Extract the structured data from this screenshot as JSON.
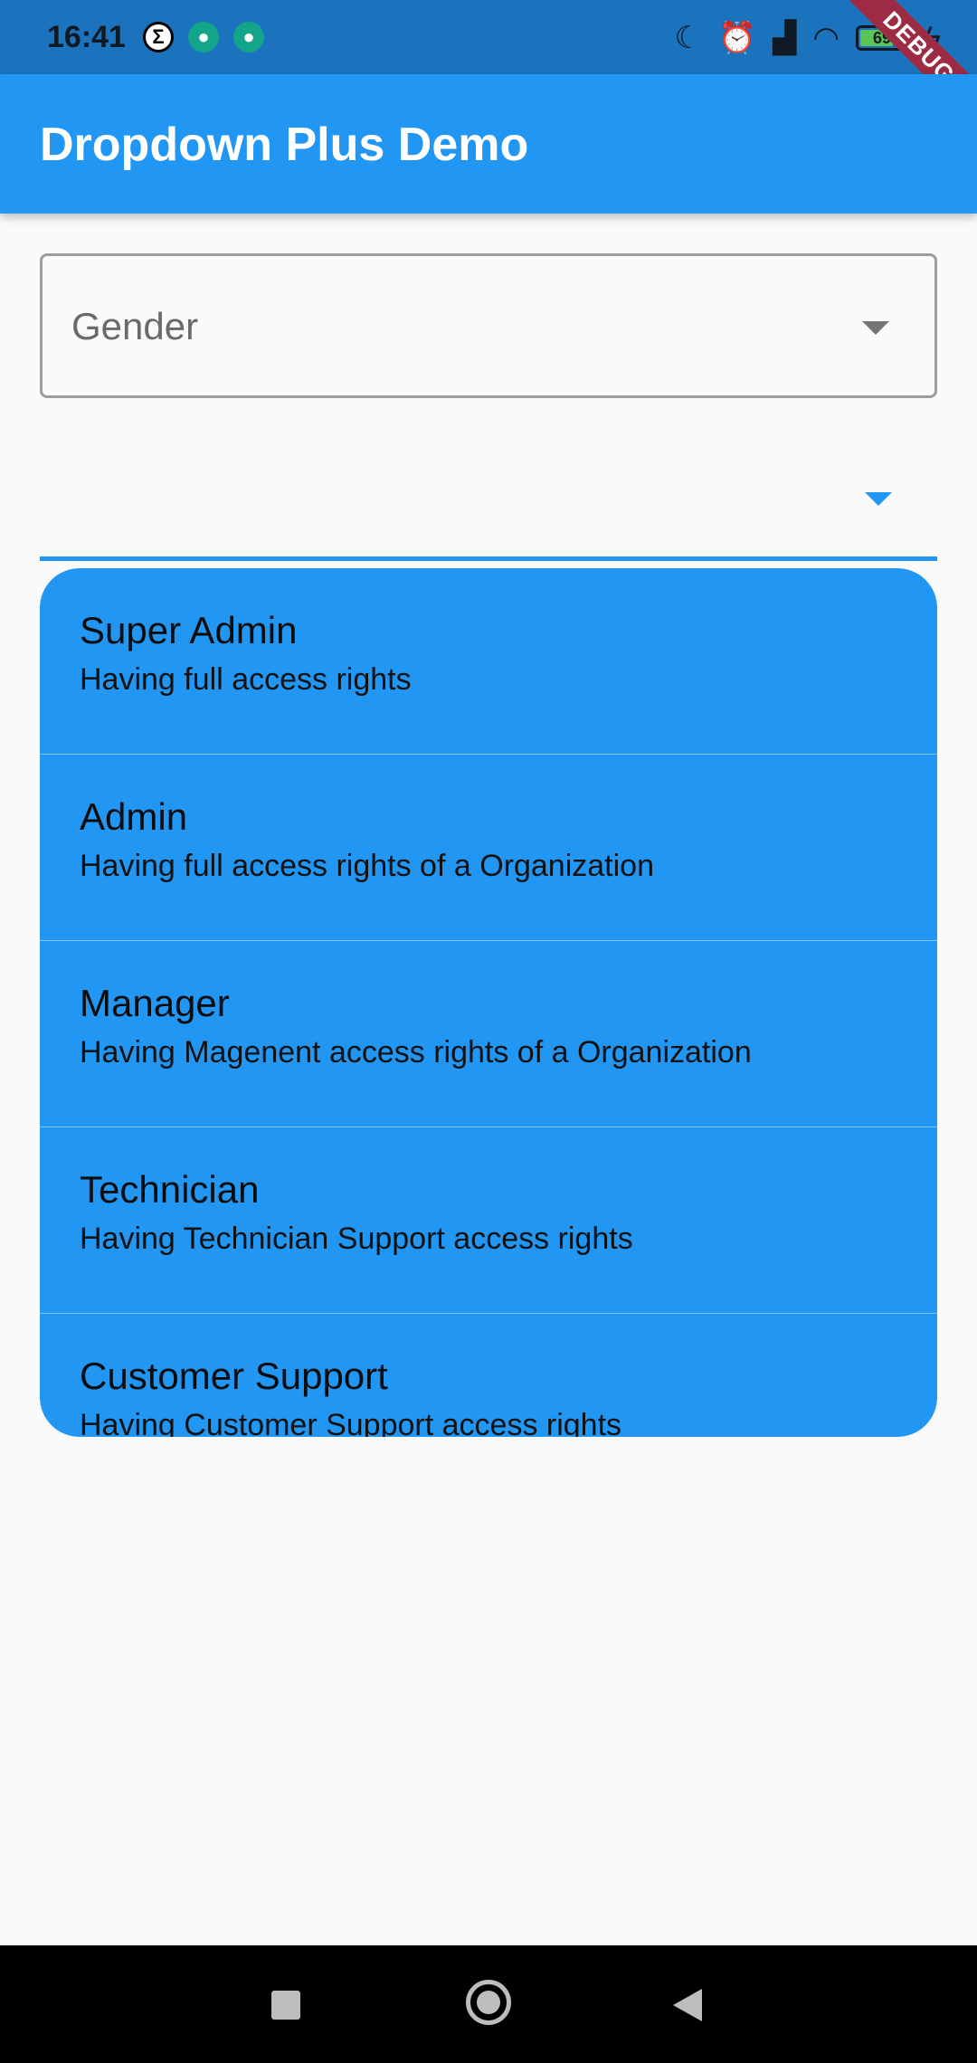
{
  "status_bar": {
    "time": "16:41",
    "left_icons": [
      "sigma-icon",
      "android-icon",
      "android-icon"
    ],
    "right_icons": [
      "moon-icon",
      "alarm-icon",
      "signal-icon",
      "wifi-icon",
      "battery-icon",
      "charging-icon"
    ],
    "battery_percent": "69"
  },
  "debug_banner": "DEBUG",
  "app_bar": {
    "title": "Dropdown Plus Demo"
  },
  "gender_dropdown": {
    "label": "Gender"
  },
  "role_dropdown": {
    "value": ""
  },
  "menu": {
    "items": [
      {
        "title": "Super Admin",
        "subtitle": "Having full access rights"
      },
      {
        "title": "Admin",
        "subtitle": "Having full access rights of a Organization"
      },
      {
        "title": "Manager",
        "subtitle": "Having Magenent access rights of a Organization"
      },
      {
        "title": "Technician",
        "subtitle": "Having Technician Support access rights"
      },
      {
        "title": "Customer Support",
        "subtitle": "Having Customer Support access rights"
      }
    ]
  },
  "nav_bar": {
    "buttons": [
      "recents-button",
      "home-button",
      "back-button"
    ]
  }
}
